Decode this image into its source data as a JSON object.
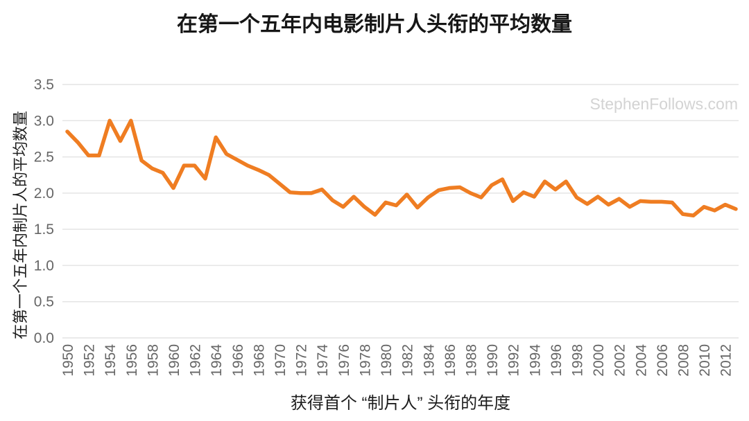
{
  "title": "在第一个五年内电影制片人头衔的平均数量",
  "watermark": "StephenFollows.com",
  "colors": {
    "line": "#EF7D22",
    "grid": "#E4E4E4",
    "tick_text": "#666666",
    "title_text": "#161616",
    "axis_title_text": "#1D1D1D",
    "watermark_text": "#D3D3D3",
    "background": "#FFFFFF"
  },
  "chart_data": {
    "type": "line",
    "title": "在第一个五年内电影制片人头衔的平均数量",
    "xlabel": "获得首个 “制片人” 头衔的年度",
    "ylabel": "在第一个五年内制片人的平均数量",
    "legend": "none",
    "grid": true,
    "ylim": [
      0.0,
      3.5
    ],
    "y_tick_labels": [
      "0.0",
      "0.5",
      "1.0",
      "1.5",
      "2.0",
      "2.5",
      "3.0",
      "3.5"
    ],
    "x_tick_labels": [
      "1950",
      "1952",
      "1954",
      "1956",
      "1958",
      "1960",
      "1962",
      "1964",
      "1966",
      "1968",
      "1970",
      "1972",
      "1974",
      "1976",
      "1978",
      "1980",
      "1982",
      "1984",
      "1986",
      "1988",
      "1990",
      "1992",
      "1994",
      "1996",
      "1998",
      "2000",
      "2002",
      "2004",
      "2006",
      "2008",
      "2010",
      "2012"
    ],
    "x": [
      1950,
      1951,
      1952,
      1953,
      1954,
      1955,
      1956,
      1957,
      1958,
      1959,
      1960,
      1961,
      1962,
      1963,
      1964,
      1965,
      1966,
      1967,
      1968,
      1969,
      1970,
      1971,
      1972,
      1973,
      1974,
      1975,
      1976,
      1977,
      1978,
      1979,
      1980,
      1981,
      1982,
      1983,
      1984,
      1985,
      1986,
      1987,
      1988,
      1989,
      1990,
      1991,
      1992,
      1993,
      1994,
      1995,
      1996,
      1997,
      1998,
      1999,
      2000,
      2001,
      2002,
      2003,
      2004,
      2005,
      2006,
      2007,
      2008,
      2009,
      2010,
      2011,
      2012,
      2013
    ],
    "values": [
      2.85,
      2.7,
      2.52,
      2.52,
      3.0,
      2.72,
      3.0,
      2.45,
      2.34,
      2.28,
      2.07,
      2.38,
      2.38,
      2.2,
      2.77,
      2.54,
      2.46,
      2.38,
      2.32,
      2.25,
      2.13,
      2.01,
      2.0,
      2.0,
      2.05,
      1.9,
      1.81,
      1.95,
      1.81,
      1.7,
      1.87,
      1.83,
      1.98,
      1.8,
      1.94,
      2.04,
      2.07,
      2.08,
      2.0,
      1.94,
      2.11,
      2.19,
      1.89,
      2.01,
      1.95,
      2.16,
      2.05,
      2.16,
      1.94,
      1.85,
      1.95,
      1.84,
      1.92,
      1.81,
      1.89,
      1.88,
      1.88,
      1.87,
      1.71,
      1.69,
      1.81,
      1.76,
      1.84,
      1.78
    ]
  }
}
